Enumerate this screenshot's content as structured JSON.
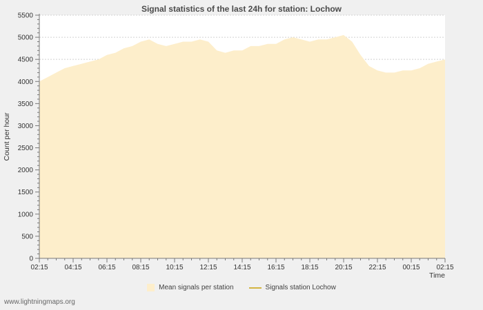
{
  "page": {
    "footer_link": "www.lightningmaps.org"
  },
  "chart_data": {
    "type": "area",
    "title": "Signal statistics of the last 24h for station: Lochow",
    "xlabel": "Time",
    "ylabel": "Count per hour",
    "ylim": [
      0,
      5500
    ],
    "grid": "horizontal-dotted",
    "legend_position": "bottom",
    "colors": {
      "area_fill": "#fdeecb",
      "station_line": "#d2b440",
      "grid_line": "#d0d0d0",
      "axis": "#777777",
      "tick_text": "#333333",
      "plot_bg": "#ffffff",
      "page_bg": "#f0f0f0"
    },
    "y_ticks": [
      0,
      500,
      1000,
      1500,
      2000,
      2500,
      3000,
      3500,
      4000,
      4500,
      5000,
      5500
    ],
    "y_minor_step": 100,
    "x_tick_hours": [
      0,
      2,
      4,
      6,
      8,
      10,
      12,
      14,
      16,
      18,
      20,
      22,
      24
    ],
    "x_tick_labels": [
      "02:15",
      "04:15",
      "06:15",
      "08:15",
      "10:15",
      "12:15",
      "14:15",
      "16:15",
      "18:15",
      "20:15",
      "22:15",
      "00:15",
      "02:15"
    ],
    "x_minor_step": 0.5,
    "series": [
      {
        "name": "Mean signals per station",
        "style": "area",
        "color": "#fdeecb",
        "x_hours": [
          0,
          0.5,
          1,
          1.5,
          2,
          2.5,
          3,
          3.5,
          4,
          4.5,
          5,
          5.5,
          6,
          6.5,
          7,
          7.5,
          8,
          8.5,
          9,
          9.5,
          10,
          10.5,
          11,
          11.5,
          12,
          12.5,
          13,
          13.5,
          14,
          14.5,
          15,
          15.5,
          16,
          16.5,
          17,
          17.5,
          18,
          18.5,
          19,
          19.5,
          20,
          20.5,
          21,
          21.5,
          22,
          22.5,
          23,
          23.5,
          24
        ],
        "values": [
          4000,
          4100,
          4200,
          4300,
          4350,
          4400,
          4450,
          4500,
          4600,
          4650,
          4750,
          4800,
          4900,
          4950,
          4850,
          4800,
          4850,
          4900,
          4900,
          4950,
          4900,
          4700,
          4650,
          4700,
          4700,
          4800,
          4800,
          4850,
          4850,
          4950,
          5000,
          4950,
          4900,
          4950,
          4950,
          5000,
          5050,
          4900,
          4600,
          4350,
          4250,
          4200,
          4200,
          4250,
          4250,
          4300,
          4400,
          4450,
          4500
        ]
      },
      {
        "name": "Signals station Lochow",
        "style": "line",
        "color": "#d2b440",
        "values": []
      }
    ],
    "legend": [
      {
        "label": "Mean signals per station",
        "swatch": "area",
        "color": "#fdeecb"
      },
      {
        "label": "Signals station Lochow",
        "swatch": "line",
        "color": "#d2b440"
      }
    ]
  }
}
